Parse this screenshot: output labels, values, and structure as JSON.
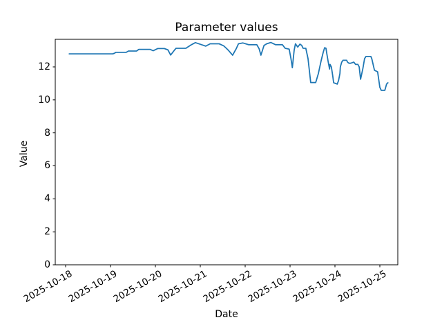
{
  "figure": {
    "title": "Parameter values",
    "xlabel": "Date",
    "ylabel": "Value",
    "background_color": "#ffffff",
    "axis_color": "#000000",
    "line_color": "#1f77b4"
  },
  "chart_data": {
    "type": "line",
    "title": "Parameter values",
    "xlabel": "Date",
    "ylabel": "Value",
    "grid": false,
    "legend": "none",
    "x_unit": "days since 2025-10-18 00:00",
    "xlim": [
      -0.231,
      7.4
    ],
    "ylim": [
      0,
      13.672
    ],
    "x_ticks": {
      "positions": [
        0,
        1,
        2,
        3,
        4,
        5,
        6,
        7
      ],
      "labels": [
        "2025-10-18",
        "2025-10-19",
        "2025-10-20",
        "2025-10-21",
        "2025-10-22",
        "2025-10-23",
        "2025-10-24",
        "2025-10-25"
      ],
      "rotation_deg": 30
    },
    "y_ticks": {
      "positions": [
        0,
        2,
        4,
        6,
        8,
        10,
        12
      ],
      "labels": [
        "0",
        "2",
        "4",
        "6",
        "8",
        "10",
        "12"
      ]
    },
    "series": [
      {
        "name": "Parameter",
        "color": "#1f77b4",
        "line_width": 1.8,
        "points": [
          [
            0.08,
            12.79
          ],
          [
            0.6,
            12.79
          ],
          [
            1.05,
            12.79
          ],
          [
            1.09,
            12.83
          ],
          [
            1.12,
            12.88
          ],
          [
            1.35,
            12.88
          ],
          [
            1.4,
            12.96
          ],
          [
            1.58,
            12.96
          ],
          [
            1.63,
            13.06
          ],
          [
            1.88,
            13.06
          ],
          [
            1.95,
            12.98
          ],
          [
            2.05,
            13.11
          ],
          [
            2.2,
            13.11
          ],
          [
            2.28,
            13.03
          ],
          [
            2.34,
            12.72
          ],
          [
            2.42,
            13.0
          ],
          [
            2.46,
            13.13
          ],
          [
            2.68,
            13.13
          ],
          [
            2.8,
            13.34
          ],
          [
            2.89,
            13.47
          ],
          [
            3.0,
            13.37
          ],
          [
            3.12,
            13.26
          ],
          [
            3.22,
            13.4
          ],
          [
            3.42,
            13.4
          ],
          [
            3.52,
            13.28
          ],
          [
            3.58,
            13.13
          ],
          [
            3.63,
            12.99
          ],
          [
            3.72,
            12.71
          ],
          [
            3.8,
            13.1
          ],
          [
            3.85,
            13.4
          ],
          [
            3.95,
            13.45
          ],
          [
            4.08,
            13.34
          ],
          [
            4.26,
            13.34
          ],
          [
            4.31,
            13.1
          ],
          [
            4.35,
            12.71
          ],
          [
            4.42,
            13.3
          ],
          [
            4.48,
            13.4
          ],
          [
            4.57,
            13.48
          ],
          [
            4.68,
            13.34
          ],
          [
            4.83,
            13.34
          ],
          [
            4.89,
            13.13
          ],
          [
            4.98,
            13.08
          ],
          [
            5.02,
            12.5
          ],
          [
            5.05,
            11.95
          ],
          [
            5.09,
            13.0
          ],
          [
            5.12,
            13.4
          ],
          [
            5.17,
            13.2
          ],
          [
            5.22,
            13.38
          ],
          [
            5.26,
            13.3
          ],
          [
            5.29,
            13.13
          ],
          [
            5.35,
            13.13
          ],
          [
            5.4,
            12.5
          ],
          [
            5.46,
            11.05
          ],
          [
            5.57,
            11.05
          ],
          [
            5.63,
            11.6
          ],
          [
            5.69,
            12.36
          ],
          [
            5.74,
            12.9
          ],
          [
            5.77,
            13.16
          ],
          [
            5.8,
            13.13
          ],
          [
            5.82,
            12.78
          ],
          [
            5.85,
            12.29
          ],
          [
            5.88,
            11.87
          ],
          [
            5.89,
            12.15
          ],
          [
            5.92,
            12.0
          ],
          [
            5.95,
            11.45
          ],
          [
            5.97,
            11.04
          ],
          [
            6.05,
            10.96
          ],
          [
            6.08,
            11.17
          ],
          [
            6.11,
            11.6
          ],
          [
            6.12,
            12.0
          ],
          [
            6.15,
            12.29
          ],
          [
            6.18,
            12.4
          ],
          [
            6.26,
            12.4
          ],
          [
            6.28,
            12.29
          ],
          [
            6.31,
            12.22
          ],
          [
            6.35,
            12.22
          ],
          [
            6.42,
            12.29
          ],
          [
            6.46,
            12.15
          ],
          [
            6.51,
            12.15
          ],
          [
            6.54,
            12.0
          ],
          [
            6.57,
            11.25
          ],
          [
            6.62,
            11.87
          ],
          [
            6.66,
            12.5
          ],
          [
            6.69,
            12.63
          ],
          [
            6.8,
            12.63
          ],
          [
            6.82,
            12.5
          ],
          [
            6.88,
            11.8
          ],
          [
            6.95,
            11.7
          ],
          [
            7.0,
            10.76
          ],
          [
            7.03,
            10.58
          ],
          [
            7.11,
            10.58
          ],
          [
            7.15,
            10.96
          ],
          [
            7.18,
            11.04
          ]
        ]
      }
    ]
  }
}
